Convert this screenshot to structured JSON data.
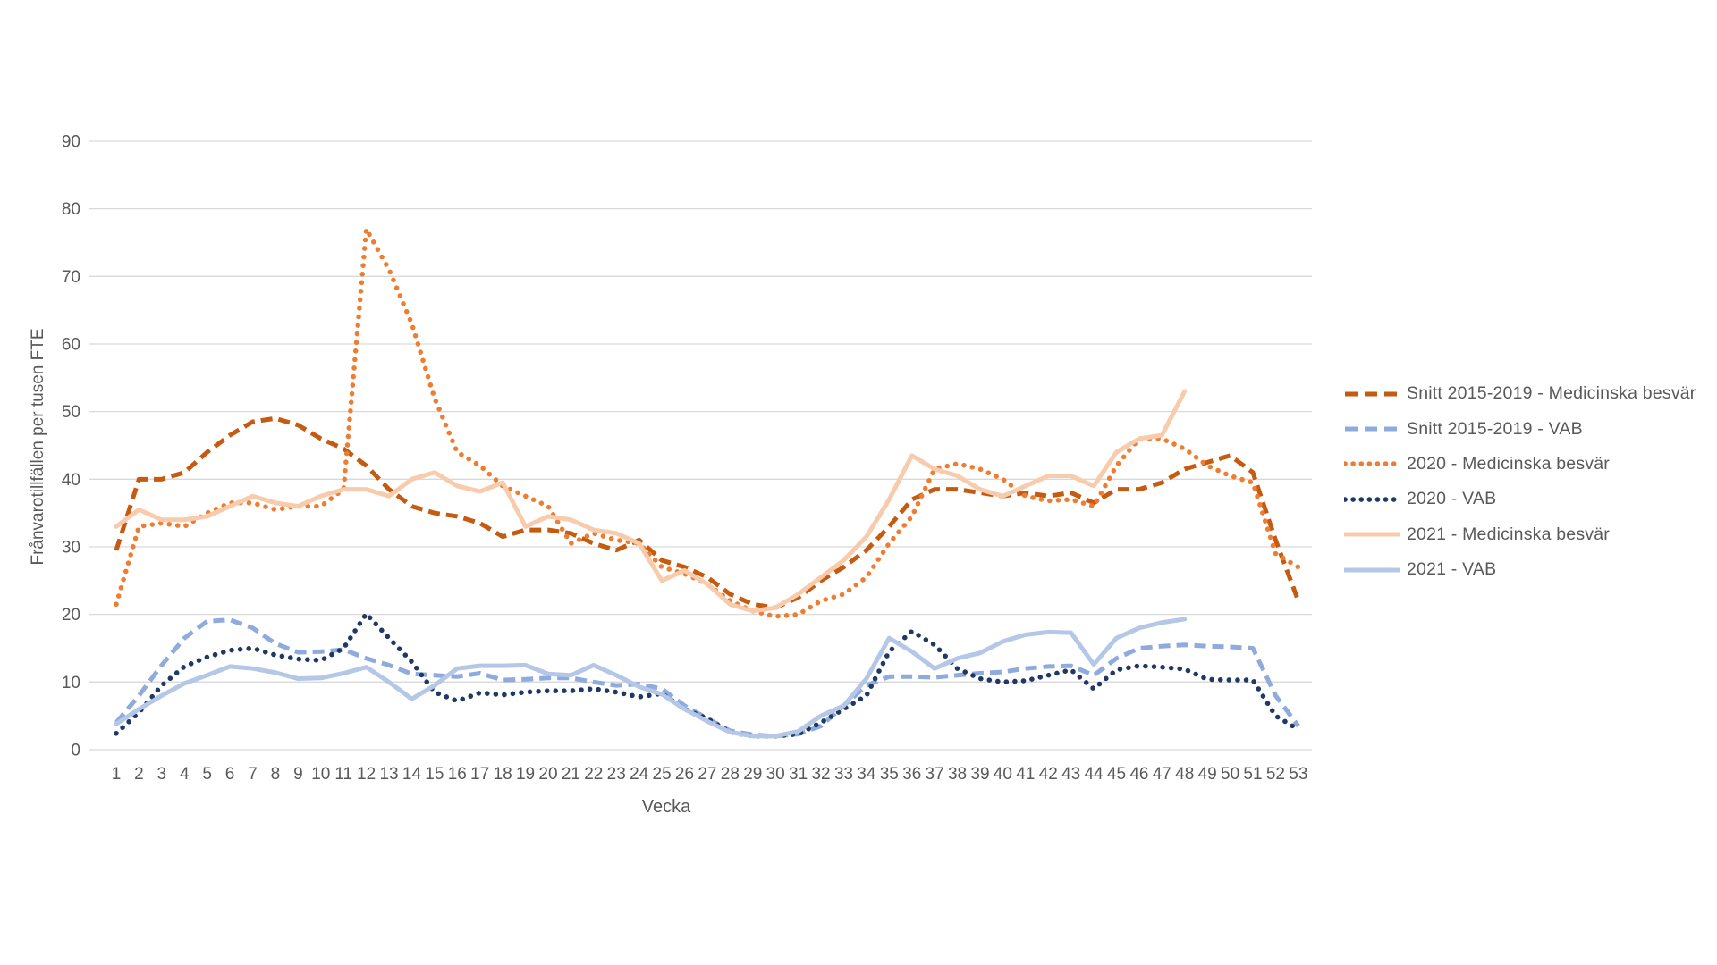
{
  "chart_data": {
    "type": "line",
    "title": "",
    "xlabel": "Vecka",
    "ylabel": "Frånvarotillfällen per tusen FTE",
    "x": [
      1,
      2,
      3,
      4,
      5,
      6,
      7,
      8,
      9,
      10,
      11,
      12,
      13,
      14,
      15,
      16,
      17,
      18,
      19,
      20,
      21,
      22,
      23,
      24,
      25,
      26,
      27,
      28,
      29,
      30,
      31,
      32,
      33,
      34,
      35,
      36,
      37,
      38,
      39,
      40,
      41,
      42,
      43,
      44,
      45,
      46,
      47,
      48,
      49,
      50,
      51,
      52,
      53
    ],
    "ylim": [
      0,
      90
    ],
    "yticks": [
      0,
      10,
      20,
      30,
      40,
      50,
      60,
      70,
      80,
      90
    ],
    "grid": "horizontal-only",
    "legend_position": "right-center",
    "gridline_color": "#D9D9D9",
    "axis_text_color": "#595959",
    "series": [
      {
        "name": "Snitt 2015-2019 - Medicinska besvär",
        "color": "#C55A11",
        "line_style": "dashed",
        "values": [
          29.5,
          40,
          40,
          41,
          44,
          46.5,
          48.5,
          49,
          48,
          46,
          44.5,
          42,
          38.5,
          36,
          35,
          34.5,
          33.5,
          31.5,
          32.5,
          32.5,
          32,
          30.5,
          29.5,
          31,
          28,
          27,
          25.5,
          23,
          21.5,
          21,
          22.5,
          25,
          27,
          29.5,
          33,
          37,
          38.5,
          38.5,
          38,
          37.5,
          38,
          37.5,
          38,
          36.5,
          38.5,
          38.5,
          39.5,
          41.5,
          42.5,
          43.5,
          41,
          31,
          22
        ]
      },
      {
        "name": "Snitt 2015-2019 - VAB",
        "color": "#8FAADC",
        "line_style": "dashed",
        "values": [
          4,
          8,
          12.5,
          16.5,
          19,
          19.2,
          18,
          15.7,
          14.4,
          14.5,
          14.8,
          13.5,
          12.5,
          11.2,
          11,
          10.8,
          11.3,
          10.3,
          10.4,
          10.6,
          10.6,
          10,
          9.5,
          9.7,
          9,
          6.5,
          4.6,
          2.8,
          2.2,
          2,
          2.3,
          3.5,
          6.5,
          9.5,
          10.8,
          10.8,
          10.7,
          11,
          11.3,
          11.5,
          12,
          12.3,
          12.4,
          11,
          13.5,
          15,
          15.3,
          15.5,
          15.3,
          15.2,
          15,
          8,
          3.5
        ]
      },
      {
        "name": "2020 - Medicinska besvär",
        "color": "#ED7D31",
        "line_style": "dotted",
        "values": [
          21.5,
          33,
          33.5,
          33,
          35,
          36.5,
          36.5,
          35.5,
          36,
          36,
          38.5,
          77,
          71,
          63,
          52,
          44,
          42,
          39,
          37.5,
          36,
          30.5,
          32,
          31,
          30.5,
          27,
          26,
          24.5,
          22,
          20.5,
          19.7,
          20,
          22,
          23,
          25.5,
          30.5,
          34.5,
          41.5,
          42.3,
          41.5,
          40,
          37.5,
          36.8,
          37,
          36,
          42,
          46,
          46,
          44.5,
          42,
          40.5,
          39.5,
          29,
          27
        ]
      },
      {
        "name": "2020 - VAB",
        "color": "#1F3864",
        "line_style": "dotted",
        "values": [
          2.4,
          5.5,
          9.5,
          12.3,
          13.7,
          14.7,
          15,
          14,
          13.4,
          13.2,
          15,
          20.1,
          16.5,
          13,
          8.5,
          7.2,
          8.4,
          8.1,
          8.5,
          8.7,
          8.7,
          9,
          8.5,
          7.8,
          8.3,
          6,
          4.6,
          2.6,
          2,
          2,
          2.3,
          4,
          6,
          8,
          14.5,
          17.5,
          15.5,
          12,
          10.5,
          10,
          10.2,
          11,
          11.8,
          9,
          11.8,
          12.4,
          12.2,
          11.9,
          10.4,
          10.3,
          10.3,
          5,
          3
        ]
      },
      {
        "name": "2021 - Medicinska besvär",
        "color": "#F8CBAD",
        "line_style": "solid",
        "values": [
          33,
          35.5,
          34,
          34,
          34.5,
          36,
          37.5,
          36.5,
          36,
          37.5,
          38.5,
          38.5,
          37.5,
          40,
          41,
          39,
          38.2,
          39.5,
          33,
          34.5,
          34,
          32.5,
          32,
          30.5,
          25,
          26.5,
          24.5,
          21.5,
          20.5,
          21,
          23,
          25.5,
          28,
          31.5,
          37,
          43.5,
          41.5,
          40.5,
          38.5,
          37.5,
          39,
          40.5,
          40.5,
          39,
          44,
          46,
          46.5,
          53
        ]
      },
      {
        "name": "2021 - VAB",
        "color": "#B4C7E7",
        "line_style": "solid",
        "values": [
          3.8,
          6,
          8,
          9.8,
          11,
          12.3,
          12,
          11.4,
          10.5,
          10.6,
          11.3,
          12.2,
          10,
          7.5,
          9.5,
          12,
          12.4,
          12.4,
          12.5,
          11.2,
          11,
          12.5,
          11,
          9.3,
          8.2,
          6,
          4.2,
          2.6,
          2,
          2,
          2.7,
          5,
          6.5,
          10.5,
          16.5,
          14.5,
          12,
          13.5,
          14.3,
          16,
          17,
          17.4,
          17.3,
          12.6,
          16.5,
          18,
          18.8,
          19.3
        ]
      }
    ]
  }
}
